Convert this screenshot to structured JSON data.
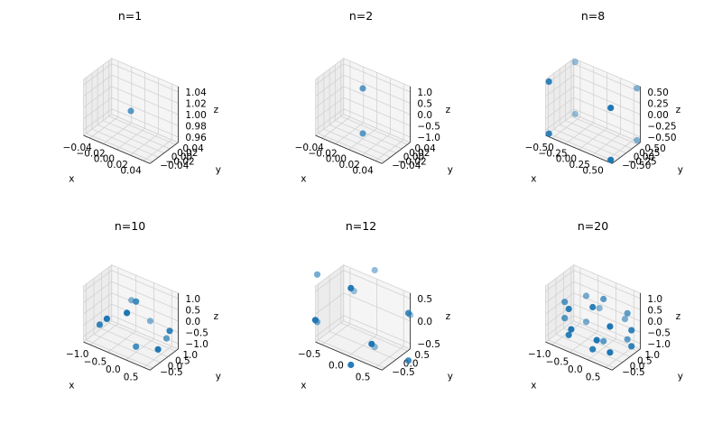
{
  "chart_data": [
    {
      "type": "scatter",
      "title": "n=1",
      "xlabel": "x",
      "ylabel": "y",
      "zlabel": "z",
      "x_ticks": [
        "−0.04",
        "−0.02",
        "0.00",
        "0.02",
        "0.04"
      ],
      "y_ticks": [
        "−0.04",
        "−0.02",
        "0.00",
        "0.02",
        "0.04"
      ],
      "z_ticks": [
        "0.96",
        "0.98",
        "1.00",
        "1.02",
        "1.04"
      ],
      "points": [
        [
          0.0,
          0.0,
          1.0
        ]
      ]
    },
    {
      "type": "scatter",
      "title": "n=2",
      "xlabel": "x",
      "ylabel": "y",
      "zlabel": "z",
      "x_ticks": [
        "−0.04",
        "−0.02",
        "0.00",
        "0.02",
        "0.04"
      ],
      "y_ticks": [
        "−0.04",
        "−0.02",
        "0.00",
        "0.02",
        "0.04"
      ],
      "z_ticks": [
        "−1.0",
        "−0.5",
        "0.0",
        "0.5",
        "1.0"
      ],
      "points": [
        [
          0.0,
          0.0,
          1.0
        ],
        [
          0.0,
          0.0,
          -1.0
        ]
      ]
    },
    {
      "type": "scatter",
      "title": "n=8",
      "xlabel": "x",
      "ylabel": "y",
      "zlabel": "z",
      "x_ticks": [
        "−0.50",
        "−0.25",
        "0.00",
        "0.25",
        "0.50"
      ],
      "y_ticks": [
        "−0.50",
        "−0.25",
        "0.00",
        "0.25",
        "0.50"
      ],
      "z_ticks": [
        "−0.50",
        "−0.25",
        "0.00",
        "0.25",
        "0.50"
      ],
      "points": [
        [
          -0.577,
          -0.577,
          -0.577
        ],
        [
          -0.577,
          -0.577,
          0.577
        ],
        [
          -0.577,
          0.577,
          -0.577
        ],
        [
          -0.577,
          0.577,
          0.577
        ],
        [
          0.577,
          -0.577,
          -0.577
        ],
        [
          0.577,
          -0.577,
          0.577
        ],
        [
          0.577,
          0.577,
          -0.577
        ],
        [
          0.577,
          0.577,
          0.577
        ]
      ]
    },
    {
      "type": "scatter",
      "title": "n=10",
      "xlabel": "x",
      "ylabel": "y",
      "zlabel": "z",
      "x_ticks": [
        "−1.0",
        "−0.5",
        "0.0",
        "0.5"
      ],
      "y_ticks": [
        "−0.5",
        "0.0",
        "0.5",
        "1.0"
      ],
      "z_ticks": [
        "−1.0",
        "−0.5",
        "0.0",
        "0.5",
        "1.0"
      ],
      "points": [
        [
          0.0,
          0.0,
          1.0
        ],
        [
          0.0,
          0.0,
          -1.0
        ],
        [
          0.943,
          0.0,
          0.333
        ],
        [
          -0.471,
          0.816,
          0.333
        ],
        [
          -0.471,
          -0.816,
          0.333
        ],
        [
          0.0,
          0.943,
          -0.333
        ],
        [
          -0.816,
          -0.471,
          -0.333
        ],
        [
          0.816,
          -0.471,
          -0.333
        ],
        [
          0.0,
          -0.6,
          0.8
        ],
        [
          0.6,
          0.6,
          -0.53
        ]
      ]
    },
    {
      "type": "scatter",
      "title": "n=12",
      "xlabel": "x",
      "ylabel": "y",
      "zlabel": "z",
      "x_ticks": [
        "−0.5",
        "0.0",
        "0.5"
      ],
      "y_ticks": [
        "−0.5",
        "0.0",
        "0.5"
      ],
      "z_ticks": [
        "−0.5",
        "0.0",
        "0.5"
      ],
      "points": [
        [
          0.0,
          0.526,
          0.851
        ],
        [
          0.0,
          -0.526,
          0.851
        ],
        [
          0.0,
          0.526,
          -0.851
        ],
        [
          0.0,
          -0.526,
          -0.851
        ],
        [
          0.526,
          0.851,
          0.0
        ],
        [
          -0.526,
          0.851,
          0.0
        ],
        [
          0.526,
          -0.851,
          0.0
        ],
        [
          -0.526,
          -0.851,
          0.0
        ],
        [
          0.851,
          0.0,
          0.526
        ],
        [
          -0.851,
          0.0,
          0.526
        ],
        [
          0.851,
          0.0,
          -0.526
        ],
        [
          -0.851,
          0.0,
          -0.526
        ]
      ]
    },
    {
      "type": "scatter",
      "title": "n=20",
      "xlabel": "x",
      "ylabel": "y",
      "zlabel": "z",
      "x_ticks": [
        "−1.0",
        "−0.5",
        "0.0",
        "0.5"
      ],
      "y_ticks": [
        "−0.5",
        "0.0",
        "0.5",
        "1.0"
      ],
      "z_ticks": [
        "−1.0",
        "−0.5",
        "0.0",
        "0.5",
        "1.0"
      ],
      "points": [
        [
          0.577,
          0.577,
          0.577
        ],
        [
          0.577,
          0.577,
          -0.577
        ],
        [
          0.577,
          -0.577,
          0.577
        ],
        [
          0.577,
          -0.577,
          -0.577
        ],
        [
          -0.577,
          0.577,
          0.577
        ],
        [
          -0.577,
          0.577,
          -0.577
        ],
        [
          -0.577,
          -0.577,
          0.577
        ],
        [
          -0.577,
          -0.577,
          -0.577
        ],
        [
          0.0,
          0.357,
          0.934
        ],
        [
          0.0,
          0.357,
          -0.934
        ],
        [
          0.0,
          -0.357,
          0.934
        ],
        [
          0.0,
          -0.357,
          -0.934
        ],
        [
          0.357,
          0.934,
          0.0
        ],
        [
          0.357,
          -0.934,
          0.0
        ],
        [
          -0.357,
          0.934,
          0.0
        ],
        [
          -0.357,
          -0.934,
          0.0
        ],
        [
          0.934,
          0.0,
          0.357
        ],
        [
          0.934,
          0.0,
          -0.357
        ],
        [
          -0.934,
          0.0,
          0.357
        ],
        [
          -0.934,
          0.0,
          -0.357
        ]
      ]
    }
  ],
  "colors": {
    "point": "#1f77b4",
    "pane_floor": "#f2f2f2",
    "pane_left": "#ececec",
    "pane_back": "#f5f5f5",
    "grid": "#d2d2d2",
    "axis": "#222222"
  }
}
